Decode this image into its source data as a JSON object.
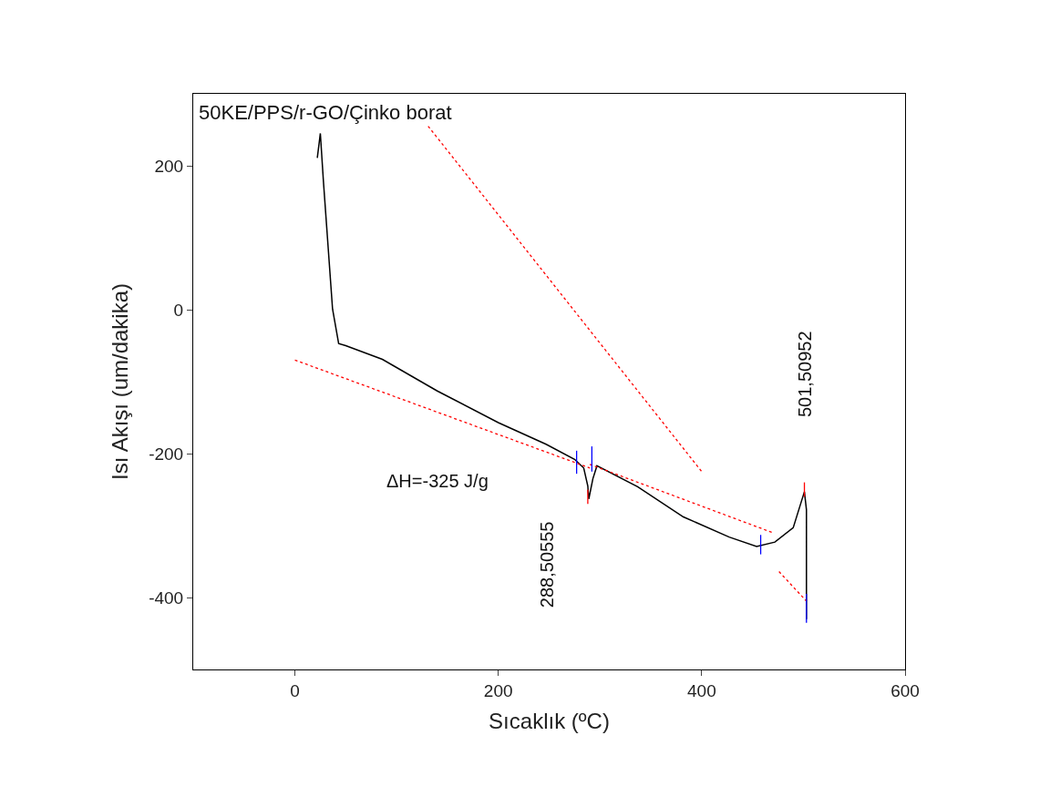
{
  "chart_data": {
    "type": "line",
    "xlabel": "Sıcaklık (ºC)",
    "ylabel": "Isı Akışı (um/dakika)",
    "xlim": [
      -100,
      600
    ],
    "xticks": [
      0,
      200,
      400,
      600
    ],
    "ylim": [
      -500,
      300
    ],
    "yticks": [
      -400,
      -200,
      0,
      200
    ],
    "marker": "none",
    "annotations": [
      "50KE/PPS/r-GO/Çinko borat",
      "288,50555",
      "501,50952",
      "ΔH=-325 J/g"
    ],
    "series": [
      {
        "color": "#000000",
        "line_style": "solid",
        "x": [
          22,
          25,
          28,
          32,
          37,
          43,
          50,
          86,
          140,
          200,
          247,
          275,
          284,
          288,
          289,
          293,
          297,
          337,
          382,
          427,
          454,
          472,
          490,
          501,
          503,
          503
        ],
        "values": [
          211,
          245,
          179,
          100,
          1,
          -47,
          -50,
          -69,
          -113,
          -157,
          -187,
          -208,
          -220,
          -245,
          -263,
          -235,
          -217,
          -246,
          -288,
          -316,
          -329,
          -323,
          -303,
          -253,
          -278,
          -430
        ]
      },
      {
        "color": "#ff0000",
        "line_style": "dotted",
        "x": [
          0,
          290
        ],
        "values": [
          -70,
          -220
        ]
      },
      {
        "color": "#ff0000",
        "line_style": "dotted",
        "x": [
          290,
          470
        ],
        "values": [
          -215,
          -310
        ]
      },
      {
        "color": "#ff0000",
        "line_style": "dotted",
        "x": [
          131,
          400
        ],
        "values": [
          255,
          -225
        ]
      },
      {
        "color": "#ff0000",
        "line_style": "dotted",
        "x": [
          476,
          503
        ],
        "values": [
          -364,
          -405
        ]
      },
      {
        "color": "#0000ff",
        "line_style": "solid",
        "x": [
          277,
          277
        ],
        "values": [
          -196,
          -228
        ]
      },
      {
        "color": "#0000ff",
        "line_style": "solid",
        "x": [
          292,
          292
        ],
        "values": [
          -190,
          -225
        ]
      },
      {
        "color": "#0000ff",
        "line_style": "solid",
        "x": [
          458,
          458
        ],
        "values": [
          -313,
          -340
        ]
      },
      {
        "color": "#0000ff",
        "line_style": "solid",
        "x": [
          503,
          503
        ],
        "values": [
          -395,
          -435
        ]
      },
      {
        "color": "#ff0000",
        "line_style": "solid",
        "x": [
          288,
          288
        ],
        "values": [
          -250,
          -270
        ]
      },
      {
        "color": "#ff0000",
        "line_style": "solid",
        "x": [
          501,
          501
        ],
        "values": [
          -240,
          -260
        ]
      }
    ]
  }
}
